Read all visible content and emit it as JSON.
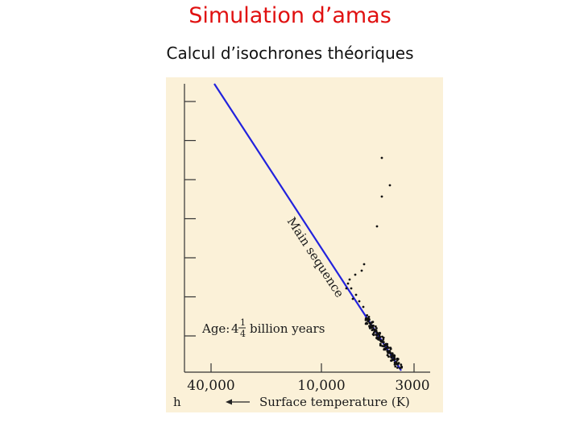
{
  "slide": {
    "title": "Simulation d’amas",
    "subtitle": "Calcul d’isochrones théoriques"
  },
  "chart_data": {
    "type": "scatter",
    "x_axis": {
      "label": "Surface temperature (K)",
      "scale": "log",
      "direction": "decreasing",
      "tick_labels": [
        "40,000",
        "10,000",
        "3000"
      ],
      "tick_values": [
        40000,
        10000,
        3000
      ],
      "truncated_left_label": "h"
    },
    "annotations": {
      "main_sequence": "Main sequence",
      "age_prefix": "Age:",
      "age_whole": "4",
      "age_frac_num": "1",
      "age_frac_den": "4",
      "age_suffix": "billion years"
    },
    "y_ticks_count": 7,
    "colors": {
      "background": "#fbf1d8",
      "main_sequence_line": "#2222dd",
      "points": "#111111"
    }
  }
}
